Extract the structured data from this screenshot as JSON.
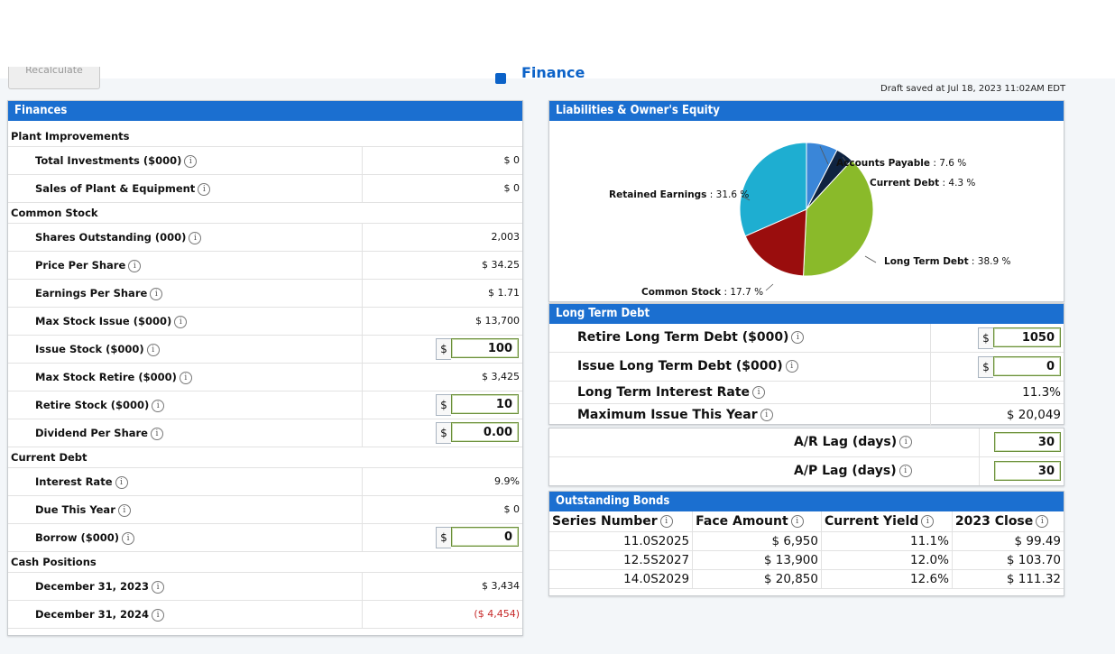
{
  "toolbar": {
    "recalculate_label": "Recalculate",
    "section_title": "Finance",
    "draft_status": "Draft saved at Jul 18, 2023 11:02AM EDT"
  },
  "finances": {
    "title": "Finances",
    "sections": [
      {
        "name": "Plant Improvements",
        "rows": [
          {
            "label": "Total Investments ($000)",
            "value": "$ 0"
          },
          {
            "label": "Sales of Plant & Equipment",
            "value": "$ 0"
          }
        ]
      },
      {
        "name": "Common Stock",
        "rows": [
          {
            "label": "Shares Outstanding (000)",
            "value": "2,003"
          },
          {
            "label": "Price Per Share",
            "value": "$ 34.25"
          },
          {
            "label": "Earnings Per Share",
            "value": "$ 1.71"
          },
          {
            "label": "Max Stock Issue ($000)",
            "value": "$ 13,700"
          },
          {
            "label": "Issue Stock ($000)",
            "input": "100"
          },
          {
            "label": "Max Stock Retire ($000)",
            "value": "$ 3,425"
          },
          {
            "label": "Retire Stock ($000)",
            "input": "10"
          },
          {
            "label": "Dividend Per Share",
            "input": "0.00"
          }
        ]
      },
      {
        "name": "Current Debt",
        "rows": [
          {
            "label": "Interest Rate",
            "value": "9.9%"
          },
          {
            "label": "Due This Year",
            "value": "$ 0"
          },
          {
            "label": "Borrow ($000)",
            "input": "0"
          }
        ]
      },
      {
        "name": "Cash Positions",
        "rows": [
          {
            "label": "December 31, 2023",
            "value": "$ 3,434"
          },
          {
            "label": "December 31, 2024",
            "value": "($ 4,454)",
            "negative": true
          }
        ]
      }
    ],
    "currency_symbol": "$",
    "info_glyph": "i"
  },
  "liabilities": {
    "title": "Liabilities & Owner's Equity",
    "chart_data": {
      "type": "pie",
      "slices": [
        {
          "label": "Accounts Payable",
          "value": 7.6,
          "color": "#3a86d8"
        },
        {
          "label": "Current Debt",
          "value": 4.3,
          "color": "#0f2340"
        },
        {
          "label": "Long Term Debt",
          "value": 38.9,
          "color": "#8aba2a"
        },
        {
          "label": "Common Stock",
          "value": 17.7,
          "color": "#9a0d0d"
        },
        {
          "label": "Retained Earnings",
          "value": 31.6,
          "color": "#1eaed1"
        }
      ],
      "label_format": "{label} : {value} %"
    }
  },
  "long_term_debt": {
    "title": "Long Term Debt",
    "retire_label": "Retire Long Term Debt ($000)",
    "retire_value": "1050",
    "issue_label": "Issue Long Term Debt ($000)",
    "issue_value": "0",
    "rate_label": "Long Term Interest Rate",
    "rate_value": "11.3%",
    "max_label": "Maximum Issue This Year",
    "max_value": "$ 20,049"
  },
  "lags": {
    "ar_label": "A/R Lag (days)",
    "ar_value": "30",
    "ap_label": "A/P Lag (days)",
    "ap_value": "30"
  },
  "bonds": {
    "title": "Outstanding Bonds",
    "headers": [
      "Series Number",
      "Face Amount",
      "Current Yield",
      "2023 Close"
    ],
    "rows": [
      [
        "11.0S2025",
        "$ 6,950",
        "11.1%",
        "$ 99.49"
      ],
      [
        "12.5S2027",
        "$ 13,900",
        "12.0%",
        "$ 103.70"
      ],
      [
        "14.0S2029",
        "$ 20,850",
        "12.6%",
        "$ 111.32"
      ]
    ]
  }
}
